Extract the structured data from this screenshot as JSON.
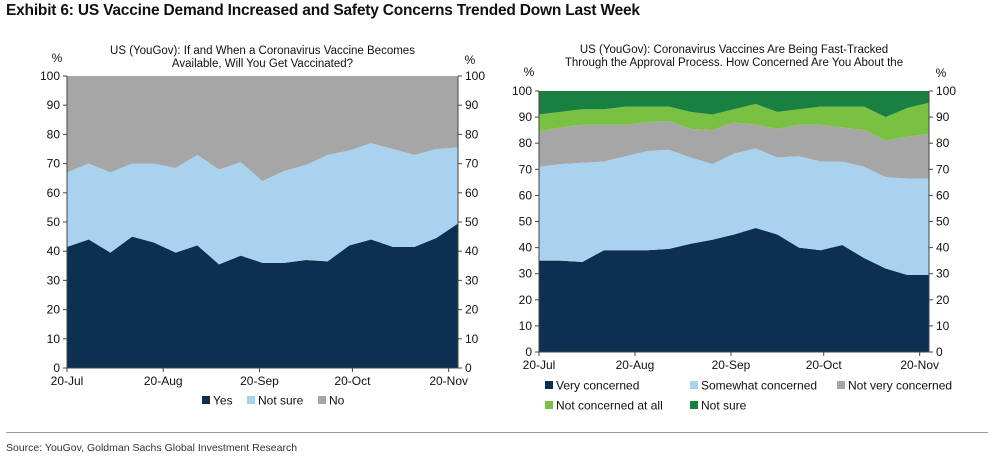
{
  "exhibit_title": "Exhibit 6: US Vaccine Demand Increased and Safety Concerns Trended Down Last Week",
  "source": "Source: YouGov, Goldman Sachs Global Investment Research",
  "chart_data": [
    {
      "type": "area",
      "stacked": true,
      "title_lines": [
        "US (YouGov): If and When a Coronavirus Vaccine Becomes",
        "Available, Will You Get Vaccinated?"
      ],
      "ylabel_left": "%",
      "ylabel_right": "%",
      "ylim": [
        0,
        100
      ],
      "yticks": [
        0,
        10,
        20,
        30,
        40,
        50,
        60,
        70,
        80,
        90,
        100
      ],
      "x_ticks": [
        {
          "label": "20-Jul",
          "index": 0
        },
        {
          "label": "20-Aug",
          "index": 4.43
        },
        {
          "label": "20-Sep",
          "index": 8.86
        },
        {
          "label": "20-Oct",
          "index": 13.14
        },
        {
          "label": "20-Nov",
          "index": 17.57
        }
      ],
      "x_count": 19,
      "legend_position": "bottom",
      "series": [
        {
          "name": "Yes",
          "color": "#0d2f52",
          "values": [
            41.5,
            44,
            39.5,
            45,
            43,
            39.5,
            42,
            35.5,
            38.5,
            36,
            36,
            37,
            36.5,
            42,
            44,
            41.5,
            41.5,
            44.5,
            49.5
          ]
        },
        {
          "name": "Not sure",
          "color": "#a9d2ef",
          "values": [
            25.5,
            26,
            27.5,
            25,
            27,
            29,
            31,
            32.5,
            32,
            28,
            31.5,
            32.5,
            36.5,
            32.5,
            33,
            33.5,
            31.5,
            30.5,
            26
          ]
        },
        {
          "name": "No",
          "color": "#a6a6a6",
          "values": [
            33,
            30,
            33,
            30,
            30,
            31.5,
            27,
            32,
            29.5,
            36,
            32.5,
            30.5,
            27,
            25.5,
            23,
            25,
            27,
            25,
            24.5
          ]
        }
      ]
    },
    {
      "type": "area",
      "stacked": true,
      "title_lines": [
        "US (YouGov): Coronavirus Vaccines Are Being Fast-Tracked",
        "Through the Approval Process. How Concerned Are You About the"
      ],
      "ylabel_left": "%",
      "ylabel_right": "%",
      "ylim": [
        0,
        100
      ],
      "yticks": [
        0,
        10,
        20,
        30,
        40,
        50,
        60,
        70,
        80,
        90,
        100
      ],
      "x_ticks": [
        {
          "label": "20-Jul",
          "index": 0
        },
        {
          "label": "20-Aug",
          "index": 4.43
        },
        {
          "label": "20-Sep",
          "index": 8.86
        },
        {
          "label": "20-Oct",
          "index": 13.14
        },
        {
          "label": "20-Nov",
          "index": 17.57
        }
      ],
      "x_count": 19,
      "legend_position": "bottom",
      "series": [
        {
          "name": "Very concerned",
          "color": "#0d2f52",
          "values": [
            35,
            35,
            34.5,
            39,
            39,
            39,
            39.5,
            41.5,
            43,
            45,
            47.5,
            45,
            40,
            39,
            41,
            36,
            32,
            29.5,
            29.5
          ]
        },
        {
          "name": "Somewhat concerned",
          "color": "#a9d2ef",
          "values": [
            36,
            37,
            38,
            34,
            36,
            38,
            38,
            33,
            29,
            31,
            30.5,
            29.5,
            35,
            34,
            32,
            35,
            35,
            37,
            37
          ]
        },
        {
          "name": "Not very concerned",
          "color": "#a6a6a6",
          "values": [
            13.5,
            14,
            14.5,
            14,
            12,
            11,
            11,
            11,
            13,
            12,
            9,
            11,
            12,
            14,
            13,
            14,
            14,
            16,
            17
          ]
        },
        {
          "name": "Not concerned at all",
          "color": "#7ac143",
          "values": [
            6.5,
            6,
            6,
            6,
            7,
            6,
            5.5,
            6.5,
            6,
            5,
            8,
            6.5,
            6,
            7,
            8,
            9,
            9,
            11,
            12
          ]
        },
        {
          "name": "Not sure",
          "color": "#1a8042",
          "values": [
            9,
            8,
            7,
            7,
            6,
            6,
            6,
            8,
            9,
            7,
            5,
            8,
            7,
            6,
            6,
            6,
            10,
            6.5,
            4.5
          ]
        }
      ]
    }
  ]
}
